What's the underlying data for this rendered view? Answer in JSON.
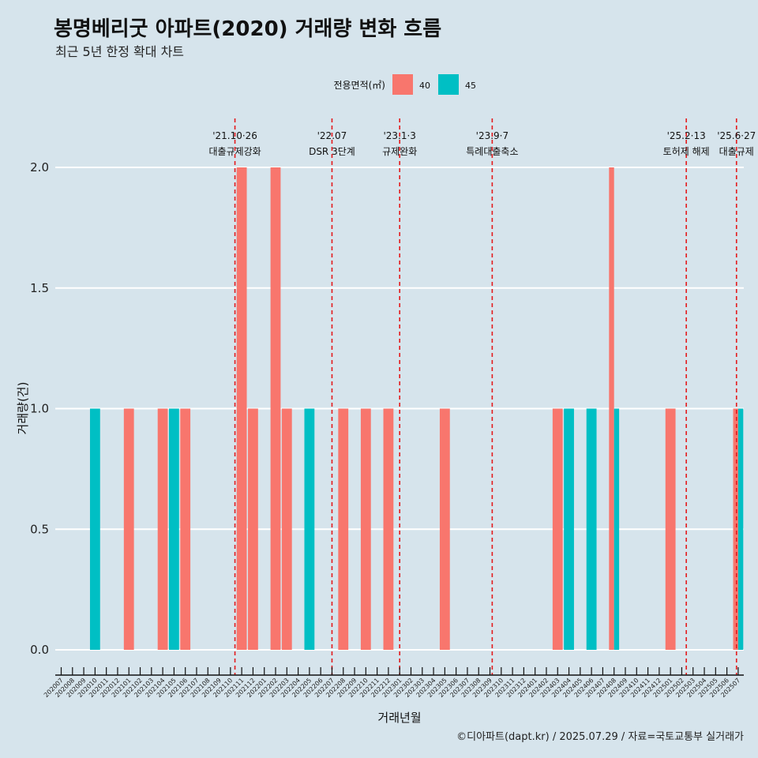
{
  "title": "봉명베리굿 아파트(2020) 거래량 변화 흐름",
  "subtitle": "최근 5년 한정 확대 차트",
  "caption": "©디아파트(dapt.kr) / 2025.07.29 / 자료=국토교통부 실거래가",
  "colors": {
    "background": "#d6e4ec",
    "series_40": "#f8766d",
    "series_45": "#00bfc4",
    "event_line": "#e41a1c",
    "grid": "#ffffff"
  },
  "chart_data": {
    "type": "bar",
    "xlabel": "거래년월",
    "ylabel": "거래량(건)",
    "ylim": [
      0,
      2
    ],
    "yticks": [
      "0.0",
      "0.5",
      "1.0",
      "1.5",
      "2.0"
    ],
    "legend": {
      "title": "전용면적(㎡)",
      "placement": "top",
      "entries": [
        "40",
        "45"
      ]
    },
    "categories": [
      "202007",
      "202008",
      "202009",
      "202010",
      "202011",
      "202012",
      "202101",
      "202102",
      "202103",
      "202104",
      "202105",
      "202106",
      "202107",
      "202108",
      "202109",
      "202110",
      "202111",
      "202112",
      "202201",
      "202202",
      "202203",
      "202204",
      "202205",
      "202206",
      "202207",
      "202208",
      "202209",
      "202210",
      "202211",
      "202212",
      "202301",
      "202302",
      "202303",
      "202304",
      "202305",
      "202306",
      "202307",
      "202308",
      "202309",
      "202310",
      "202311",
      "202312",
      "202401",
      "202402",
      "202403",
      "202404",
      "202405",
      "202406",
      "202407",
      "202408",
      "202409",
      "202410",
      "202411",
      "202412",
      "202501",
      "202502",
      "202503",
      "202504",
      "202505",
      "202506",
      "202507"
    ],
    "series": [
      {
        "name": "40",
        "values": [
          0,
          0,
          0,
          0,
          0,
          0,
          1,
          0,
          0,
          1,
          0,
          1,
          0,
          0,
          0,
          0,
          2,
          1,
          0,
          2,
          1,
          0,
          0,
          0,
          0,
          1,
          0,
          1,
          0,
          1,
          0,
          0,
          0,
          0,
          1,
          0,
          0,
          0,
          0,
          0,
          0,
          0,
          0,
          0,
          1,
          0,
          0,
          0,
          0,
          2,
          0,
          0,
          0,
          0,
          1,
          0,
          0,
          0,
          0,
          0,
          1
        ]
      },
      {
        "name": "45",
        "values": [
          0,
          0,
          0,
          1,
          0,
          0,
          0,
          0,
          0,
          0,
          1,
          0,
          0,
          0,
          0,
          0,
          0,
          0,
          0,
          0,
          0,
          0,
          1,
          0,
          0,
          0,
          0,
          0,
          0,
          0,
          0,
          0,
          0,
          0,
          0,
          0,
          0,
          0,
          0,
          0,
          0,
          0,
          0,
          0,
          0,
          1,
          0,
          1,
          0,
          1,
          0,
          0,
          0,
          0,
          0,
          0,
          0,
          0,
          0,
          0,
          1
        ]
      }
    ],
    "events": [
      {
        "date": "'21.10·26",
        "label": "대출규제강화",
        "month": "202110",
        "offset": 0.4
      },
      {
        "date": "'22.07",
        "label": "DSR 3단계",
        "month": "202207",
        "offset": 0.0
      },
      {
        "date": "'23.1·3",
        "label": "규제완화",
        "month": "202301",
        "offset": 0.0
      },
      {
        "date": "'23.9·7",
        "label": "특례대출축소",
        "month": "202309",
        "offset": 0.2
      },
      {
        "date": "'25.2·13",
        "label": "토허제 해제",
        "month": "202502",
        "offset": 0.4
      },
      {
        "date": "'25.6·27",
        "label": "대출규제",
        "month": "202506",
        "offset": 0.85
      }
    ]
  }
}
